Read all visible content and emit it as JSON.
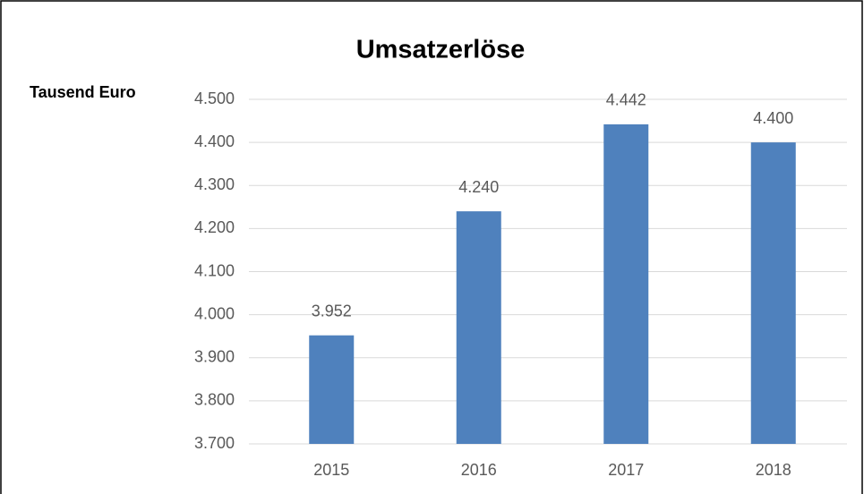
{
  "chart_data": {
    "type": "bar",
    "title": "Umsatzerlöse",
    "y_label": "Tausend Euro",
    "categories": [
      "2015",
      "2016",
      "2017",
      "2018"
    ],
    "values": [
      3952,
      4240,
      4442,
      4400
    ],
    "value_labels": [
      "3.952",
      "4.240",
      "4.442",
      "4.400"
    ],
    "color": "#4f81bd",
    "ylim": [
      3700,
      4500
    ],
    "yticks": [
      {
        "value": 3700,
        "label": "3.700"
      },
      {
        "value": 3800,
        "label": "3.800"
      },
      {
        "value": 3900,
        "label": "3.900"
      },
      {
        "value": 4000,
        "label": "4.000"
      },
      {
        "value": 4100,
        "label": "4.100"
      },
      {
        "value": 4200,
        "label": "4.200"
      },
      {
        "value": 4300,
        "label": "4.300"
      },
      {
        "value": 4400,
        "label": "4.400"
      },
      {
        "value": 4500,
        "label": "4.500"
      }
    ],
    "grid": true
  }
}
